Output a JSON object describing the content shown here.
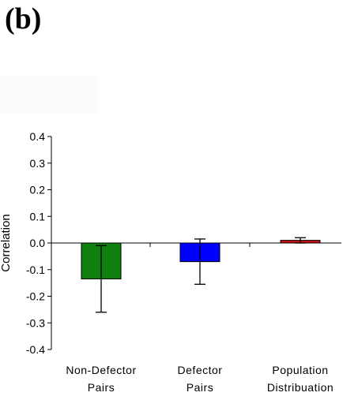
{
  "panel_label": "(b)",
  "chart_data": {
    "type": "bar",
    "title": "",
    "ylabel": "Correlation",
    "xlabel": "",
    "ylim": [
      -0.4,
      0.4
    ],
    "yticks": [
      "0.4",
      "0.3",
      "0.2",
      "0.1",
      "0.0",
      "-0.1",
      "-0.2",
      "-0.3",
      "-0.4"
    ],
    "categories": [
      [
        "Non-Defector",
        "Pairs"
      ],
      [
        "Defector",
        "Pairs"
      ],
      [
        "Population",
        "Distribuation"
      ]
    ],
    "values": [
      -0.135,
      -0.07,
      0.01
    ],
    "errors": [
      0.125,
      0.085,
      0.01
    ],
    "colors": [
      "#0f7f0f",
      "#0000ff",
      "#cc1111"
    ],
    "grid": false
  }
}
